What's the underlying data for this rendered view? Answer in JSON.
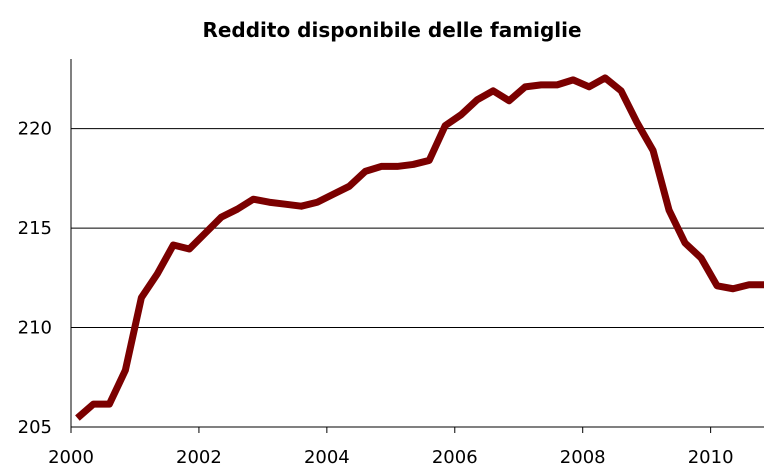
{
  "chart_data": {
    "type": "line",
    "title": "Reddito disponibile delle famiglie",
    "x": [
      2000.1,
      2000.35,
      2000.6,
      2000.85,
      2001.1,
      2001.35,
      2001.6,
      2001.85,
      2002.1,
      2002.35,
      2002.6,
      2002.85,
      2003.1,
      2003.35,
      2003.6,
      2003.85,
      2004.1,
      2004.35,
      2004.6,
      2004.85,
      2005.1,
      2005.35,
      2005.6,
      2005.85,
      2006.1,
      2006.35,
      2006.6,
      2006.85,
      2007.1,
      2007.35,
      2007.6,
      2007.85,
      2008.1,
      2008.35,
      2008.6,
      2008.85,
      2009.1,
      2009.35,
      2009.6,
      2009.85,
      2010.1,
      2010.35,
      2010.6,
      2010.85
    ],
    "series": [
      {
        "name": "Reddito disponibile",
        "color": "#7b0000",
        "values": [
          205.45,
          206.15,
          206.15,
          207.85,
          211.5,
          212.7,
          214.15,
          213.95,
          214.75,
          215.55,
          215.95,
          216.45,
          216.3,
          216.2,
          216.1,
          216.3,
          216.7,
          217.1,
          217.85,
          218.1,
          218.1,
          218.2,
          218.4,
          220.15,
          220.7,
          221.45,
          221.9,
          221.4,
          222.1,
          222.2,
          222.2,
          222.45,
          222.1,
          222.55,
          221.9,
          220.3,
          218.9,
          215.9,
          214.25,
          213.5,
          212.1,
          211.95,
          212.15,
          212.15
        ]
      }
    ],
    "xlim": [
      2000,
      2010.85
    ],
    "xticks": [
      2000,
      2002,
      2004,
      2006,
      2008,
      2010
    ],
    "ylim": [
      205,
      223.5
    ],
    "yticks": [
      205,
      210,
      215,
      220
    ],
    "grid": true
  }
}
